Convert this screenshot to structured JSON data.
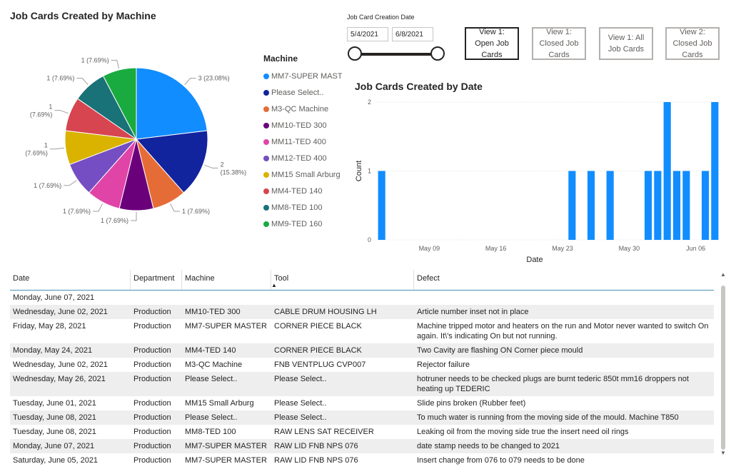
{
  "pie_chart": {
    "title": "Job Cards Created by Machine",
    "legend_title": "Machine",
    "slices": [
      {
        "name": "MM7-SUPER MASTE",
        "value": 3,
        "label": "3 (23.08%)",
        "color": "#118dff"
      },
      {
        "name": "Please Select..",
        "value": 2,
        "label_line1": "2",
        "label_line2": "(15.38%)",
        "color": "#12239e"
      },
      {
        "name": "M3-QC Machine",
        "value": 1,
        "label": "1 (7.69%)",
        "color": "#e66c37"
      },
      {
        "name": "MM10-TED 300",
        "value": 1,
        "label": "1 (7.69%)",
        "color": "#6b007b"
      },
      {
        "name": "MM11-TED 400",
        "value": 1,
        "label": "1 (7.69%)",
        "color": "#e044a7"
      },
      {
        "name": "MM12-TED 400",
        "value": 1,
        "label": "1 (7.69%)",
        "color": "#744ec2"
      },
      {
        "name": "MM15 Small Arburg",
        "value": 1,
        "label_line1": "1",
        "label_line2": "(7.69%)",
        "color": "#d9b300"
      },
      {
        "name": "MM4-TED 140",
        "value": 1,
        "label_line1": "1",
        "label_line2": "(7.69%)",
        "color": "#d64550"
      },
      {
        "name": "MM8-TED 100",
        "value": 1,
        "label": "1 (7.69%)",
        "color": "#197278"
      },
      {
        "name": "MM9-TED 160",
        "value": 1,
        "label": "1 (7.69%)",
        "color": "#1aab40"
      }
    ]
  },
  "date_slicer": {
    "title": "Job Card Creation Date",
    "start": "5/4/2021",
    "end": "6/8/2021"
  },
  "view_buttons": [
    {
      "label": "View 1: Open Job Cards",
      "active": true
    },
    {
      "label": "View 1: Closed Job Cards",
      "active": false
    },
    {
      "label": "View 1: All Job Cards",
      "active": false
    },
    {
      "label": "View 2: Closed Job Cards",
      "active": false
    }
  ],
  "chart_data": {
    "type": "bar",
    "title": "Job Cards Created by Date",
    "xlabel": "Date",
    "ylabel": "Count",
    "ylim": [
      0,
      2
    ],
    "y_ticks": [
      0,
      1,
      2
    ],
    "x_tick_labels": [
      {
        "label": "May 09",
        "date": "2021-05-09"
      },
      {
        "label": "May 16",
        "date": "2021-05-16"
      },
      {
        "label": "May 23",
        "date": "2021-05-23"
      },
      {
        "label": "May 30",
        "date": "2021-05-30"
      },
      {
        "label": "Jun 06",
        "date": "2021-06-06"
      }
    ],
    "x_range": [
      "2021-05-04",
      "2021-06-08"
    ],
    "bar_color": "#118dff",
    "points": [
      {
        "date": "2021-05-04",
        "value": 1
      },
      {
        "date": "2021-05-24",
        "value": 1
      },
      {
        "date": "2021-05-26",
        "value": 1
      },
      {
        "date": "2021-05-28",
        "value": 1
      },
      {
        "date": "2021-06-01",
        "value": 1
      },
      {
        "date": "2021-06-02",
        "value": 1
      },
      {
        "date": "2021-06-03",
        "value": 2
      },
      {
        "date": "2021-06-04",
        "value": 1
      },
      {
        "date": "2021-06-05",
        "value": 1
      },
      {
        "date": "2021-06-07",
        "value": 1
      },
      {
        "date": "2021-06-08",
        "value": 2
      }
    ]
  },
  "table": {
    "columns": [
      "Date",
      "Department",
      "Machine",
      "Tool",
      "Defect"
    ],
    "rows": [
      [
        "Monday, June 07, 2021",
        "",
        "",
        "",
        ""
      ],
      [
        "Wednesday, June 02, 2021",
        "Production",
        "MM10-TED 300",
        "CABLE DRUM HOUSING LH",
        "Article number inset not in place"
      ],
      [
        "Friday, May 28, 2021",
        "Production",
        "MM7-SUPER MASTER",
        "CORNER PIECE BLACK",
        "Machine tripped motor and heaters on the run and Motor never wanted to switch On again. It\\'s indicating On but not running."
      ],
      [
        "Monday, May 24, 2021",
        "Production",
        "MM4-TED 140",
        "CORNER PIECE BLACK",
        "Two Cavity are flashing ON Corner piece mould"
      ],
      [
        "Wednesday, June 02, 2021",
        "Production",
        "M3-QC Machine",
        "FNB VENTPLUG CVP007",
        "Rejector failure"
      ],
      [
        "Wednesday, May 26, 2021",
        "Production",
        "Please Select..",
        "Please Select..",
        "hotruner needs to be checked plugs are burnt tederic 850t mm16 droppers not heating up TEDERIC"
      ],
      [
        "Tuesday, June 01, 2021",
        "Production",
        "MM15 Small Arburg",
        "Please Select..",
        "Slide pins broken (Rubber feet)"
      ],
      [
        "Tuesday, June 08, 2021",
        "Production",
        "Please Select..",
        "Please Select..",
        "To much water is running from the moving side of the mould. Machine T850"
      ],
      [
        "Tuesday, June 08, 2021",
        "Production",
        "MM8-TED 100",
        "RAW LENS SAT RECEIVER",
        "Leaking oil from the moving side true the insert need oil rings"
      ],
      [
        "Monday, June 07, 2021",
        "Production",
        "MM7-SUPER MASTER",
        "RAW LID FNB NPS 076",
        "date stamp needs to be changed to 2021"
      ],
      [
        "Saturday, June 05, 2021",
        "Production",
        "MM7-SUPER MASTER",
        "RAW LID FNB NPS 076",
        "Insert change from 076 to 079 needs to be done"
      ]
    ]
  }
}
